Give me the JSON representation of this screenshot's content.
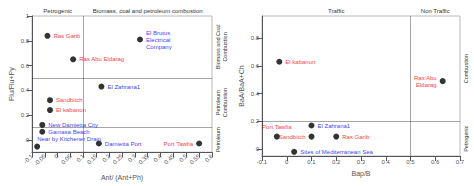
{
  "chart_data": [
    {
      "type": "scatter",
      "xlabel": "Ant/ (Ant+Ph)",
      "ylabel": "Flu/Flu+Py",
      "xlim": [
        -0.1,
        0.6
      ],
      "ylim": [
        -0.1,
        1.0
      ],
      "xticks": [
        -0.1,
        -0.05,
        0.0,
        0.05,
        0.1,
        0.15,
        0.2,
        0.25,
        0.3,
        0.35,
        0.4,
        0.45,
        0.5,
        0.55,
        0.6
      ],
      "yticks": [
        0,
        0.2,
        0.4,
        0.6,
        0.8,
        1.0
      ],
      "grid": false,
      "color": "black",
      "vlines": [
        0.1
      ],
      "hlines": [
        0.5,
        0.1
      ],
      "top_labels": [
        "Petrogenic",
        "Biomass, coal and petroleum combustion"
      ],
      "side_labels": [
        "Biomass and Coal\nCombustion",
        "Petroleum\nCombustion",
        "Petroleum"
      ],
      "points": [
        {
          "x": -0.04,
          "y": 0.84,
          "label": "Ras Garib",
          "label_color": "red"
        },
        {
          "x": 0.06,
          "y": 0.65,
          "label": "Ras Abu Eldarag",
          "label_color": "red"
        },
        {
          "x": -0.03,
          "y": 0.32,
          "label": "Sandbitch",
          "label_color": "red"
        },
        {
          "x": -0.03,
          "y": 0.24,
          "label": "El kabanon",
          "label_color": "red"
        },
        {
          "x": -0.06,
          "y": 0.12,
          "label": "New Damietta City",
          "label_color": "blue"
        },
        {
          "x": -0.06,
          "y": 0.065,
          "label": "Gamasa Beach",
          "label_color": "blue"
        },
        {
          "x": -0.08,
          "y": -0.055,
          "label": "Near by Kitchener Drain",
          "label_color": "blue"
        },
        {
          "x": 0.17,
          "y": 0.43,
          "label": "El Zahrana1",
          "label_color": "blue"
        },
        {
          "x": 0.16,
          "y": -0.03,
          "label": "Damietta Port",
          "label_color": "blue"
        },
        {
          "x": 0.32,
          "y": 0.81,
          "label": "El Brutus\nElectrical\nCompany",
          "label_color": "blue"
        },
        {
          "x": 0.55,
          "y": -0.03,
          "label": "Port Tawfia",
          "label_color": "red"
        }
      ]
    },
    {
      "type": "scatter",
      "xlabel": "Bap/B",
      "ylabel": "BaA/BaA+Ch",
      "xlim": [
        -0.1,
        0.7
      ],
      "ylim": [
        -0.05,
        0.96
      ],
      "xticks": [
        -0.1,
        0.0,
        0.1,
        0.2,
        0.3,
        0.4,
        0.5,
        0.6,
        0.7
      ],
      "yticks": [
        0,
        0.2,
        0.4,
        0.6,
        0.8
      ],
      "grid": false,
      "color": "black",
      "vlines": [
        0.5
      ],
      "hlines": [
        0.2
      ],
      "top_labels": [
        "Traffic",
        "Non Traffic"
      ],
      "side_labels": [
        "Combustion",
        "Petrogenic"
      ],
      "points": [
        {
          "x": -0.03,
          "y": 0.63,
          "label": "El kabanon",
          "label_color": "red"
        },
        {
          "x": 0.63,
          "y": 0.49,
          "label": "Ras Abu\nEldarag",
          "label_color": "red"
        },
        {
          "x": 0.1,
          "y": 0.17,
          "label": "El Zahrana1",
          "label_color": "blue"
        },
        {
          "x": -0.04,
          "y": 0.09,
          "label": "Port Tawfia",
          "label_color": "red"
        },
        {
          "x": 0.1,
          "y": 0.09,
          "label": "Sandbitch",
          "label_color": "red"
        },
        {
          "x": 0.2,
          "y": 0.09,
          "label": "Ras Garib",
          "label_color": "red"
        },
        {
          "x": 0.03,
          "y": -0.02,
          "label": "Sites of Mediterranean Sea",
          "label_color": "blue"
        }
      ]
    }
  ]
}
